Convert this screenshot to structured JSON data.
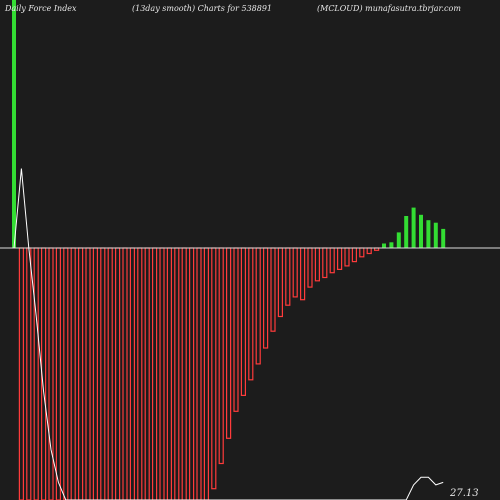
{
  "header": {
    "left": "Daily Force  Index",
    "center": "(13day smooth) Charts for 538891",
    "right": "(MCLOUD) munafasutra.tbrjar.com"
  },
  "colors": {
    "background": "#1c1c1c",
    "positive": "#33dd33",
    "negative": "#ff3b3b",
    "zero_line": "#dddddd",
    "smooth_line": "#ffffff",
    "text": "#e6e6e6"
  },
  "chart_data": {
    "type": "bar",
    "title": "",
    "xlabel": "",
    "ylabel": "",
    "ylim": [
      -100,
      100
    ],
    "values": [
      100,
      -100,
      -100,
      -100,
      -100,
      -100,
      -100,
      -100,
      -100,
      -100,
      -100,
      -100,
      -100,
      -100,
      -100,
      -100,
      -100,
      -100,
      -100,
      -100,
      -100,
      -100,
      -100,
      -100,
      -100,
      -100,
      -100,
      -95.5,
      -85.5,
      -75.5,
      -64.8,
      -58.5,
      -52.3,
      -46.0,
      -39.7,
      -33.0,
      -27.2,
      -22.7,
      -19.4,
      -20.5,
      -15.5,
      -13.0,
      -11.7,
      -9.8,
      -8.5,
      -7.1,
      -5.4,
      -3.5,
      -2.2,
      -0.9,
      1.8,
      2.3,
      6.3,
      12.9,
      16.3,
      13.4,
      11.2,
      10.2,
      7.7
    ],
    "series": [
      {
        "values": [
          0,
          32,
          0,
          -27,
          -57,
          -80,
          -93,
          -100,
          -100,
          -100,
          -100,
          -100,
          -100,
          -100,
          -100,
          -100,
          -100,
          -100,
          -100,
          -100,
          -100,
          -100,
          -100,
          -100,
          -100,
          -100,
          -100,
          -100,
          -100,
          -100,
          -100,
          -100,
          -100,
          -100,
          -100,
          -100,
          -100,
          -100,
          -100,
          -100,
          -100,
          -100,
          -100,
          -100,
          -100,
          -100,
          -100,
          -100,
          -100,
          -100,
          -100,
          -100,
          -100,
          -100,
          -94,
          -91,
          -91,
          -94,
          -93
        ]
      }
    ],
    "last_value": "27.13",
    "grid": false,
    "legend": "none"
  }
}
